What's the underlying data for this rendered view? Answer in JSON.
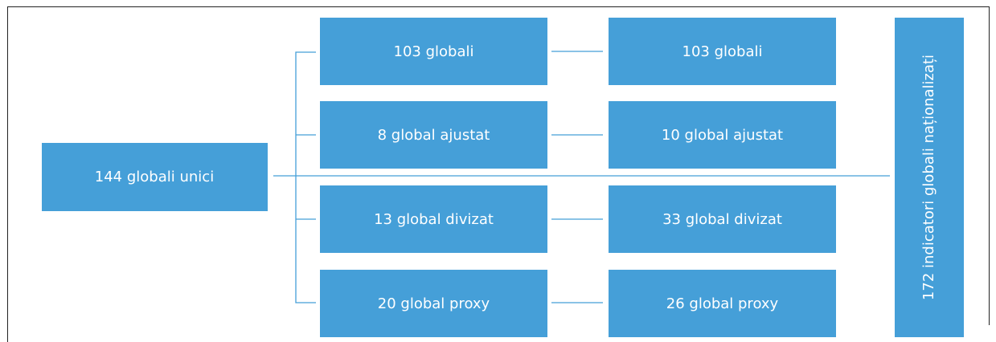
{
  "source": {
    "label": "144 globali unici"
  },
  "middle": [
    {
      "label": "103 globali"
    },
    {
      "label": "8 global ajustat"
    },
    {
      "label": "13 global divizat"
    },
    {
      "label": "20 global proxy"
    }
  ],
  "right": [
    {
      "label": "103 globali"
    },
    {
      "label": "10 global ajustat"
    },
    {
      "label": "33 global divizat"
    },
    {
      "label": "26 global proxy"
    }
  ],
  "total": {
    "label": "172 indicatori globali naționalizați"
  }
}
